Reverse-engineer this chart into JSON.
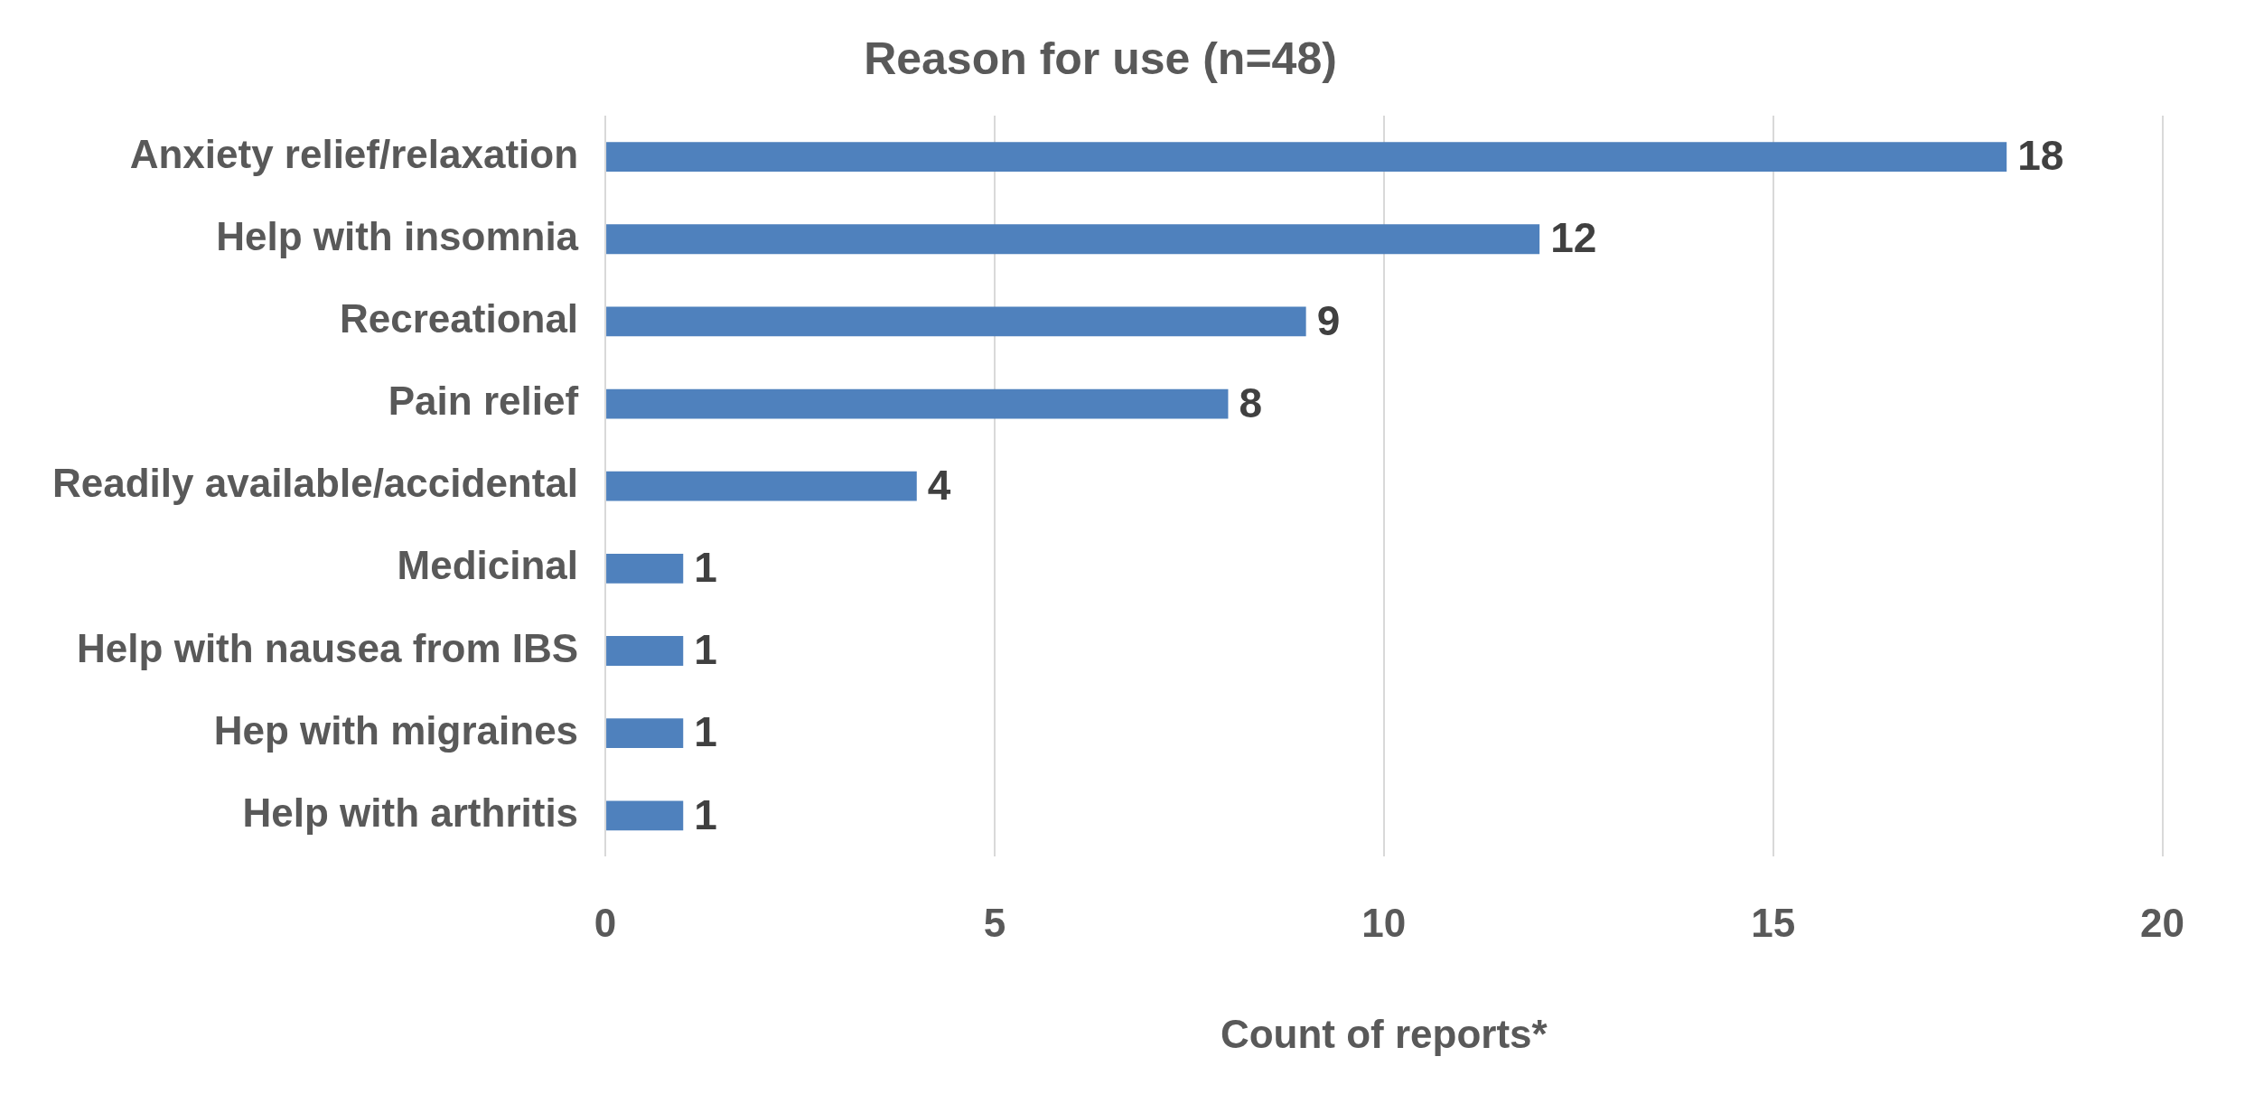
{
  "chart_data": {
    "type": "bar",
    "orientation": "horizontal",
    "title": "Reason for use (n=48)",
    "xlabel": "Count of reports*",
    "categories": [
      "Anxiety relief/relaxation",
      "Help with insomnia",
      "Recreational",
      "Pain relief",
      "Readily available/accidental",
      "Medicinal",
      "Help with nausea from IBS",
      "Hep with migraines",
      "Help with arthritis"
    ],
    "values": [
      18,
      12,
      9,
      8,
      4,
      1,
      1,
      1,
      1
    ],
    "color": "#4f81bd",
    "xlim": [
      0,
      20
    ],
    "xticks": [
      0,
      5,
      10,
      15,
      20
    ],
    "grid": "x",
    "data_labels": true
  }
}
